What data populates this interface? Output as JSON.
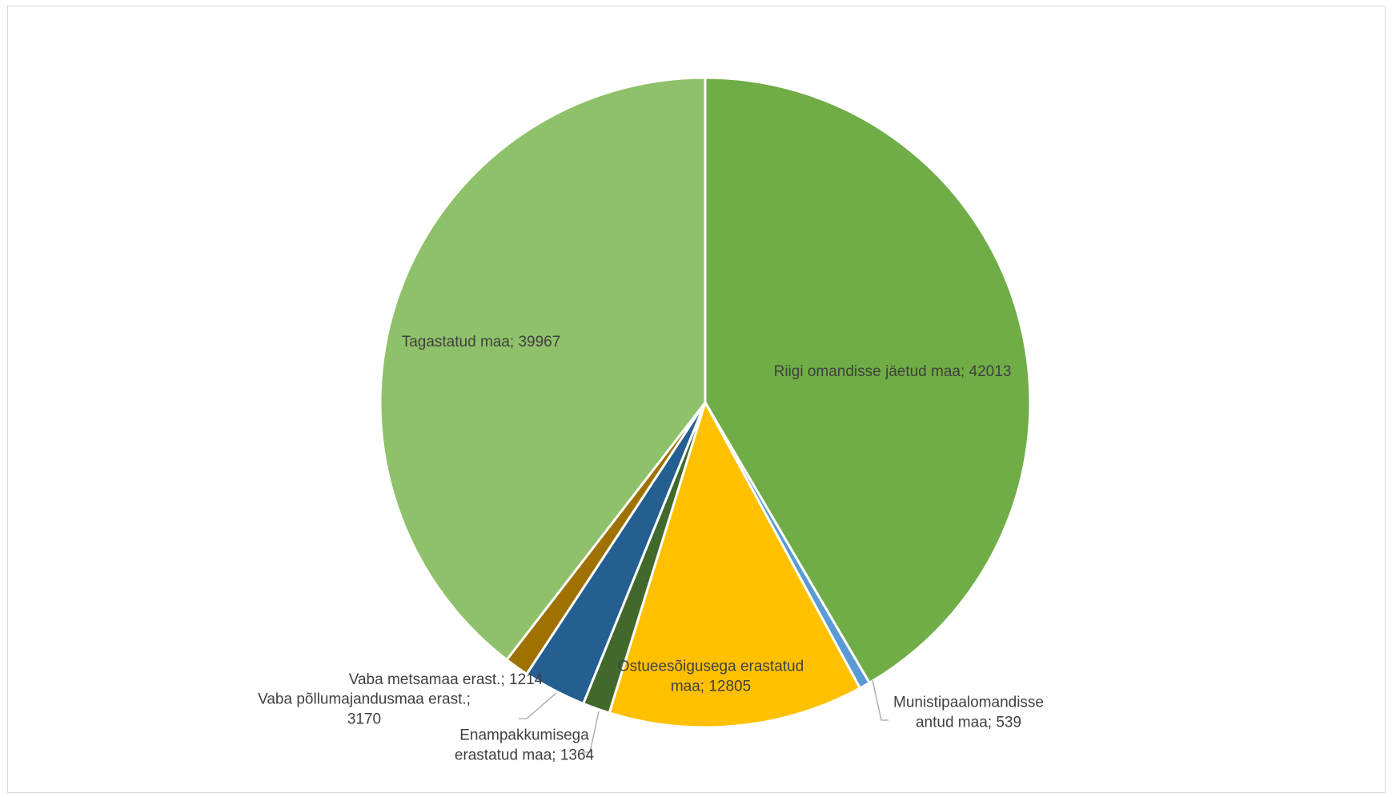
{
  "chart_data": {
    "type": "pie",
    "title": "",
    "categories": [
      "Riigi omandisse jäetud maa",
      "Munistipaalomandisse antud maa",
      "Ostueesõigusega erastatud maa",
      "Enampakkumisega erastatud maa",
      "Vaba põllumajandusmaa erast.",
      "Vaba metsamaa erast.",
      "Tagastatud maa"
    ],
    "values": [
      42013,
      539,
      12805,
      1364,
      3170,
      1214,
      39967
    ],
    "colors": [
      "#70ad47",
      "#5b9bd5",
      "#ffc000",
      "#43682b",
      "#255e91",
      "#9e7100",
      "#8fc16a"
    ],
    "start_angle_deg": 0,
    "direction": "clockwise",
    "slice_border_color": "#ffffff",
    "leader_line_color": "#a6a6a6",
    "label_color": "#404040",
    "data_labels": [
      {
        "lines": [
          "Riigi omandisse jäetud maa; 42013"
        ],
        "leader": false
      },
      {
        "lines": [
          "Munistipaalomandisse",
          "antud maa; 539"
        ],
        "leader": true
      },
      {
        "lines": [
          "Ostueesõigusega erastatud",
          "maa; 12805"
        ],
        "leader": false
      },
      {
        "lines": [
          "Enampakkumisega",
          "erastatud maa; 1364"
        ],
        "leader": true
      },
      {
        "lines": [
          "Vaba põllumajandusmaa erast.;",
          "3170"
        ],
        "leader": true
      },
      {
        "lines": [
          "Vaba metsamaa erast.; 1214"
        ],
        "leader": false
      },
      {
        "lines": [
          "Tagastatud maa; 39967"
        ],
        "leader": false
      }
    ],
    "legend": "none"
  }
}
